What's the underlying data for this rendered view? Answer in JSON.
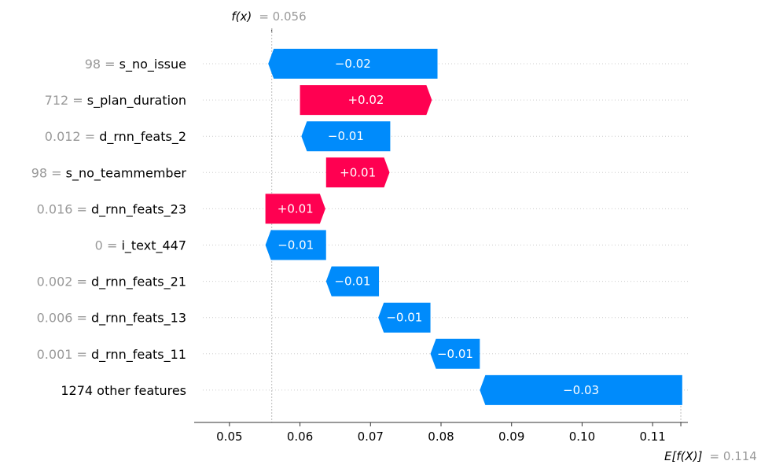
{
  "chart_data": {
    "type": "waterfall",
    "fx_label": "f(x)",
    "fx_value": "= 0.056",
    "fx": 0.056,
    "efx_label": "E[f(X)]",
    "efx_value": "= 0.114",
    "efx": 0.114,
    "xlim": [
      0.045,
      0.115
    ],
    "ticks": [
      "0.05",
      "0.06",
      "0.07",
      "0.08",
      "0.09",
      "0.10",
      "0.11"
    ],
    "features": [
      {
        "value": "98 =",
        "name": "s_no_issue",
        "start": 0.0555,
        "end": 0.0795,
        "label": "−0.02"
      },
      {
        "value": "712 =",
        "name": "s_plan_duration",
        "start": 0.06,
        "end": 0.0787,
        "label": "+0.02"
      },
      {
        "value": "0.012 =",
        "name": "d_rnn_feats_2",
        "start": 0.0602,
        "end": 0.0728,
        "label": "−0.01"
      },
      {
        "value": "98 =",
        "name": "s_no_teammember",
        "start": 0.0637,
        "end": 0.0727,
        "label": "+0.01"
      },
      {
        "value": "0.016 =",
        "name": "d_rnn_feats_23",
        "start": 0.0551,
        "end": 0.0636,
        "label": "+0.01"
      },
      {
        "value": "0 =",
        "name": "i_text_447",
        "start": 0.0551,
        "end": 0.0637,
        "label": "−0.01"
      },
      {
        "value": "0.002 =",
        "name": "d_rnn_feats_21",
        "start": 0.0637,
        "end": 0.0712,
        "label": "−0.01"
      },
      {
        "value": "0.006 =",
        "name": "d_rnn_feats_13",
        "start": 0.0711,
        "end": 0.0785,
        "label": "−0.01"
      },
      {
        "value": "0.001 =",
        "name": "d_rnn_feats_11",
        "start": 0.0785,
        "end": 0.0855,
        "label": "−0.01"
      },
      {
        "value": "",
        "name": "1274 other features",
        "start": 0.0855,
        "end": 0.1142,
        "label": "−0.03"
      }
    ],
    "colors": {
      "negative": "#008bfb",
      "positive": "#ff0051"
    }
  }
}
